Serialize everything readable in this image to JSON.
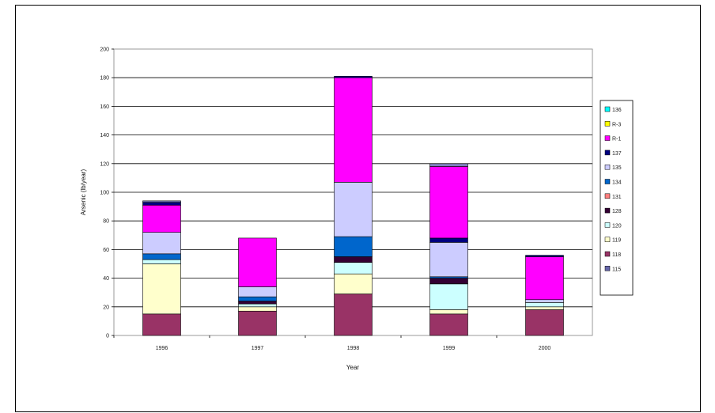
{
  "chart_data": {
    "type": "bar",
    "stacked": true,
    "categories": [
      "1996",
      "1997",
      "1998",
      "1999",
      "2000"
    ],
    "xlabel": "Year",
    "ylabel": "Arsenic (lb/year)",
    "ylim": [
      0,
      200
    ],
    "yticks": [
      0,
      20,
      40,
      60,
      80,
      100,
      120,
      140,
      160,
      180,
      200
    ],
    "grid": true,
    "legend_position": "right",
    "series": [
      {
        "name": "115",
        "color": "#6666aa",
        "values": [
          0,
          0,
          0,
          0,
          0
        ]
      },
      {
        "name": "118",
        "color": "#993366",
        "values": [
          15,
          17,
          29,
          15,
          18
        ]
      },
      {
        "name": "119",
        "color": "#ffffcc",
        "values": [
          35,
          3,
          14,
          3,
          2
        ]
      },
      {
        "name": "120",
        "color": "#ccffff",
        "values": [
          3,
          2,
          8,
          18,
          3
        ]
      },
      {
        "name": "128",
        "color": "#330033",
        "values": [
          0,
          2,
          4,
          4,
          0
        ]
      },
      {
        "name": "131",
        "color": "#ff8080",
        "values": [
          0,
          0,
          0,
          0,
          0
        ]
      },
      {
        "name": "134",
        "color": "#0066cc",
        "values": [
          4,
          3,
          14,
          1,
          0
        ]
      },
      {
        "name": "135",
        "color": "#ccccff",
        "values": [
          15,
          7,
          38,
          24,
          2
        ]
      },
      {
        "name": "137",
        "color": "#000080",
        "values": [
          0,
          0,
          0,
          3,
          0
        ]
      },
      {
        "name": "R-1",
        "color": "#ff00ff",
        "values": [
          19,
          34,
          73,
          50,
          30
        ]
      },
      {
        "name": "R-3",
        "color": "#ffff00",
        "values": [
          0,
          0,
          0,
          0,
          0
        ]
      },
      {
        "name": "136",
        "color": "#00ffff",
        "values": [
          0,
          0,
          0,
          0,
          0
        ]
      },
      {
        "name": "",
        "color": "#000080",
        "values": [
          2,
          0,
          1,
          0,
          1
        ]
      },
      {
        "name": "",
        "color": "#7f7fbf",
        "values": [
          1,
          0,
          0,
          2,
          0
        ]
      }
    ]
  }
}
